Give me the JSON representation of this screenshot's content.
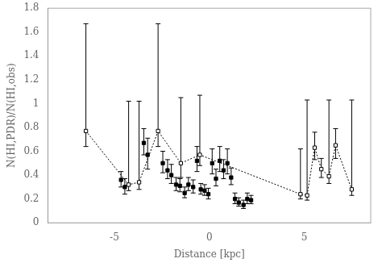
{
  "chart_data": {
    "type": "scatter",
    "xlabel": "Distance [kpc]",
    "ylabel": "N(HI,PDR)/N(HI,obs)",
    "xlim": [
      -8.5,
      8.5
    ],
    "ylim": [
      0,
      1.8
    ],
    "xticks": [
      -5,
      0,
      5
    ],
    "yticks": [
      0,
      0.2,
      0.4,
      0.6,
      0.8,
      1,
      1.2,
      1.4,
      1.6,
      1.8
    ],
    "grid": false,
    "series": [
      {
        "color": "#000000",
        "marker": "open_square",
        "line_style": "dotted",
        "x": [
          -6.5,
          -4.25,
          -3.7,
          -2.7,
          -1.5,
          -0.5,
          4.8,
          5.15,
          5.55,
          5.9,
          6.3,
          6.65,
          7.5
        ],
        "values": [
          0.77,
          0.32,
          0.34,
          0.77,
          0.5,
          0.57,
          0.24,
          0.23,
          0.63,
          0.45,
          0.39,
          0.65,
          0.28
        ],
        "yerr_lo": [
          0.13,
          0.05,
          0.06,
          0.13,
          0.12,
          0.09,
          0.04,
          0.04,
          0.1,
          0.07,
          0.06,
          0.11,
          0.05
        ],
        "yerr_hi": [
          0.9,
          0.7,
          0.68,
          0.9,
          0.55,
          0.5,
          0.38,
          0.8,
          0.13,
          0.09,
          0.64,
          0.14,
          0.75
        ]
      },
      {
        "color": "#000000",
        "marker": "square",
        "line_style": "none",
        "x": [
          -4.65,
          -4.45,
          -3.45,
          -3.25,
          -2.45,
          -2.2,
          -2.0,
          -1.75,
          -1.55,
          -1.3,
          -1.1,
          -0.85,
          -0.65,
          -0.45,
          -0.25,
          -0.05,
          0.15,
          0.35,
          0.55,
          0.75,
          0.95,
          1.15,
          1.35,
          1.55,
          1.8,
          2.0,
          2.2
        ],
        "values": [
          0.36,
          0.3,
          0.67,
          0.57,
          0.5,
          0.44,
          0.4,
          0.32,
          0.31,
          0.25,
          0.32,
          0.3,
          0.52,
          0.28,
          0.27,
          0.24,
          0.5,
          0.37,
          0.52,
          0.44,
          0.5,
          0.38,
          0.2,
          0.17,
          0.15,
          0.2,
          0.19
        ],
        "yerr_lo": [
          0.06,
          0.06,
          0.1,
          0.12,
          0.08,
          0.07,
          0.07,
          0.05,
          0.05,
          0.04,
          0.05,
          0.05,
          0.09,
          0.04,
          0.04,
          0.04,
          0.09,
          0.06,
          0.09,
          0.07,
          0.09,
          0.06,
          0.04,
          0.03,
          0.03,
          0.04,
          0.03
        ],
        "yerr_hi": [
          0.07,
          0.07,
          0.12,
          0.14,
          0.1,
          0.09,
          0.09,
          0.06,
          0.06,
          0.05,
          0.06,
          0.06,
          0.12,
          0.05,
          0.05,
          0.05,
          0.12,
          0.08,
          0.12,
          0.09,
          0.12,
          0.08,
          0.05,
          0.04,
          0.04,
          0.05,
          0.04
        ]
      }
    ]
  }
}
